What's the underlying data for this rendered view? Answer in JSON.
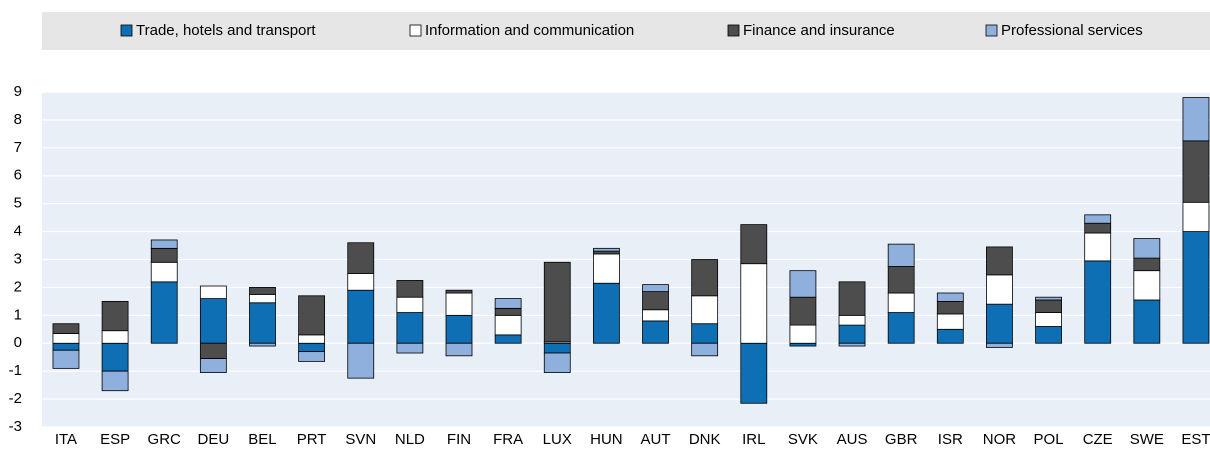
{
  "chart_data": {
    "type": "stacked_bar",
    "categories": [
      "ITA",
      "ESP",
      "GRC",
      "DEU",
      "BEL",
      "PRT",
      "SVN",
      "NLD",
      "FIN",
      "FRA",
      "LUX",
      "HUN",
      "AUT",
      "DNK",
      "IRL",
      "SVK",
      "AUS",
      "GBR",
      "ISR",
      "NOR",
      "POL",
      "CZE",
      "SWE",
      "EST"
    ],
    "series": [
      {
        "name": "Trade, hotels and transport",
        "color": "#0f6fb4",
        "values": [
          -0.25,
          -1.0,
          2.2,
          1.6,
          1.45,
          -0.3,
          1.9,
          1.1,
          1.0,
          0.3,
          -0.35,
          2.15,
          0.8,
          0.7,
          -2.15,
          -0.1,
          0.65,
          1.1,
          0.5,
          1.4,
          0.6,
          2.95,
          1.55,
          4.0
        ]
      },
      {
        "name": "Information and communication",
        "color": "#ffffff",
        "values": [
          0.35,
          0.45,
          0.7,
          0.45,
          0.3,
          0.3,
          0.6,
          0.55,
          0.8,
          0.7,
          0.05,
          1.05,
          0.4,
          1.0,
          2.85,
          0.65,
          0.35,
          0.7,
          0.55,
          1.05,
          0.5,
          1.0,
          1.05,
          1.05
        ]
      },
      {
        "name": "Finance and insurance",
        "color": "#4d4d4d",
        "values": [
          0.35,
          1.05,
          0.5,
          -0.55,
          0.25,
          1.4,
          1.1,
          0.6,
          0.1,
          0.25,
          2.85,
          0.1,
          0.65,
          1.3,
          1.4,
          1.0,
          1.2,
          0.95,
          0.45,
          1.0,
          0.45,
          0.35,
          0.45,
          2.2
        ]
      },
      {
        "name": "Professional services",
        "color": "#8fb0dc",
        "values": [
          -0.65,
          -0.7,
          0.3,
          -0.5,
          -0.1,
          -0.35,
          -1.25,
          -0.35,
          -0.45,
          0.35,
          -0.7,
          0.1,
          0.25,
          -0.45,
          0,
          0.95,
          -0.1,
          0.8,
          0.3,
          -0.15,
          0.1,
          0.3,
          0.7,
          1.55
        ]
      }
    ],
    "ylim": [
      -3,
      9
    ],
    "yticks": [
      -3,
      -2,
      -1,
      0,
      1,
      2,
      3,
      4,
      5,
      6,
      7,
      8,
      9
    ],
    "grid": true
  }
}
